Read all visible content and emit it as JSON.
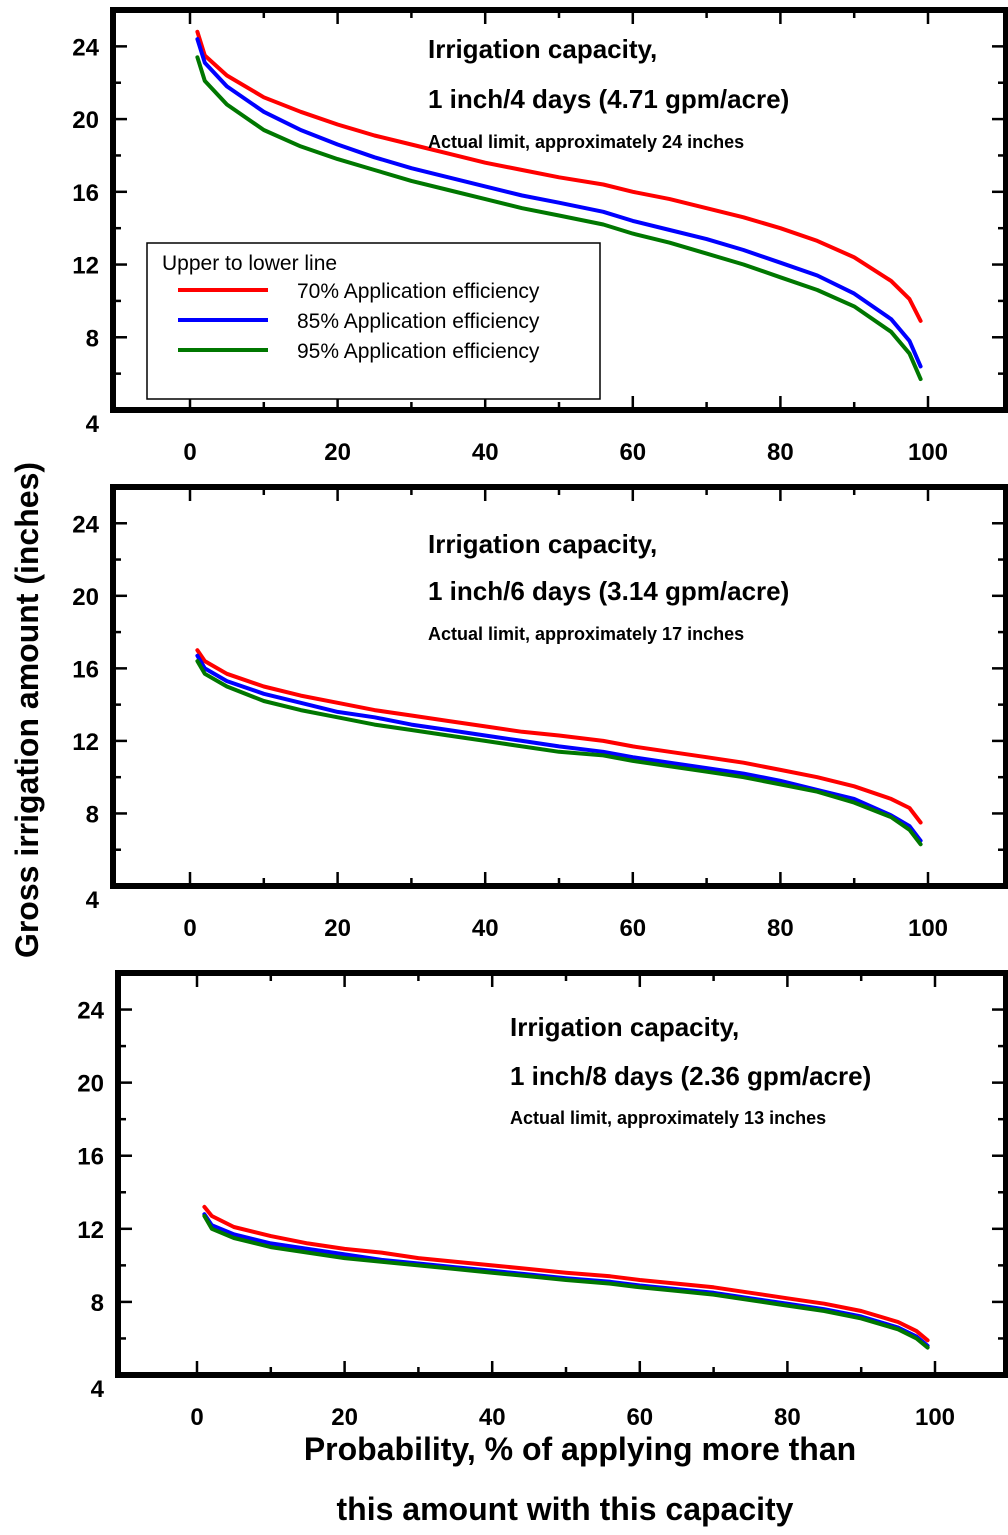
{
  "ylabel": "Gross irrigation amount (inches)",
  "xlabel_lines": [
    "Probability, % of applying more than",
    "this amount with this capacity"
  ],
  "legend": {
    "title": "Upper to lower line",
    "position": "left",
    "items": [
      "70% Application efficiency",
      "85% Application efficiency",
      "95% Application efficiency"
    ]
  },
  "colors": {
    "70% Application efficiency": "#ff0000",
    "85% Application efficiency": "#0000ff",
    "95% Application efficiency": "#007700",
    "axes": "#000000"
  },
  "chart_data": [
    {
      "type": "line",
      "annotation": [
        "Irrigation capacity,",
        "1 inch/4 days (4.71 gpm/acre)",
        "Actual limit, approximately 24 inches"
      ],
      "xlim": [
        0,
        100
      ],
      "ylim": [
        4,
        26
      ],
      "xticks": [
        0,
        20,
        40,
        60,
        80,
        100
      ],
      "yticks": [
        4,
        8,
        12,
        16,
        20,
        24
      ],
      "x": [
        1,
        2,
        5,
        10,
        15,
        20,
        25,
        30,
        35,
        40,
        45,
        50,
        56,
        60,
        65,
        70,
        75,
        80,
        85,
        90,
        95,
        97.5,
        99
      ],
      "series": [
        {
          "name": "70% Application efficiency",
          "values": [
            24.8,
            23.5,
            22.4,
            21.2,
            20.4,
            19.7,
            19.1,
            18.6,
            18.1,
            17.6,
            17.2,
            16.8,
            16.4,
            16.0,
            15.6,
            15.1,
            14.6,
            14.0,
            13.3,
            12.4,
            11.1,
            10.1,
            8.9
          ]
        },
        {
          "name": "85% Application efficiency",
          "values": [
            24.4,
            23.1,
            21.8,
            20.4,
            19.4,
            18.6,
            17.9,
            17.3,
            16.8,
            16.3,
            15.8,
            15.4,
            14.9,
            14.4,
            13.9,
            13.4,
            12.8,
            12.1,
            11.4,
            10.4,
            9.0,
            7.8,
            6.4
          ]
        },
        {
          "name": "95% Application efficiency",
          "values": [
            23.4,
            22.1,
            20.8,
            19.4,
            18.5,
            17.8,
            17.2,
            16.6,
            16.1,
            15.6,
            15.1,
            14.7,
            14.2,
            13.7,
            13.2,
            12.6,
            12.0,
            11.3,
            10.6,
            9.7,
            8.3,
            7.1,
            5.7
          ]
        }
      ]
    },
    {
      "type": "line",
      "annotation": [
        "Irrigation capacity,",
        "1 inch/6 days (3.14 gpm/acre)",
        "Actual limit, approximately 17 inches"
      ],
      "xlim": [
        0,
        100
      ],
      "ylim": [
        4,
        26
      ],
      "xticks": [
        0,
        20,
        40,
        60,
        80,
        100
      ],
      "yticks": [
        4,
        8,
        12,
        16,
        20,
        24
      ],
      "x": [
        1,
        2,
        5,
        10,
        15,
        20,
        25,
        30,
        35,
        40,
        45,
        50,
        56,
        60,
        65,
        70,
        75,
        80,
        85,
        90,
        95,
        97.5,
        99
      ],
      "series": [
        {
          "name": "70% Application efficiency",
          "values": [
            17.0,
            16.4,
            15.7,
            15.0,
            14.5,
            14.1,
            13.7,
            13.4,
            13.1,
            12.8,
            12.5,
            12.3,
            12.0,
            11.7,
            11.4,
            11.1,
            10.8,
            10.4,
            10.0,
            9.5,
            8.8,
            8.3,
            7.5
          ]
        },
        {
          "name": "85% Application efficiency",
          "values": [
            16.7,
            16.0,
            15.3,
            14.6,
            14.1,
            13.6,
            13.3,
            12.9,
            12.6,
            12.3,
            12.0,
            11.7,
            11.4,
            11.1,
            10.8,
            10.5,
            10.2,
            9.8,
            9.3,
            8.8,
            7.9,
            7.3,
            6.5
          ]
        },
        {
          "name": "95% Application efficiency",
          "values": [
            16.4,
            15.7,
            15.0,
            14.2,
            13.7,
            13.3,
            12.9,
            12.6,
            12.3,
            12.0,
            11.7,
            11.4,
            11.2,
            10.9,
            10.6,
            10.3,
            10.0,
            9.6,
            9.2,
            8.6,
            7.8,
            7.1,
            6.3
          ]
        }
      ]
    },
    {
      "type": "line",
      "annotation": [
        "Irrigation capacity,",
        "1 inch/8 days (2.36 gpm/acre)",
        "Actual limit, approximately 13 inches"
      ],
      "xlim": [
        0,
        100
      ],
      "ylim": [
        4,
        26
      ],
      "xticks": [
        0,
        20,
        40,
        60,
        80,
        100
      ],
      "yticks": [
        4,
        8,
        12,
        16,
        20,
        24
      ],
      "x": [
        1,
        2,
        5,
        10,
        15,
        20,
        25,
        30,
        35,
        40,
        45,
        50,
        56,
        60,
        65,
        70,
        75,
        80,
        85,
        90,
        95,
        97.5,
        99
      ],
      "series": [
        {
          "name": "70% Application efficiency",
          "values": [
            13.2,
            12.7,
            12.1,
            11.6,
            11.2,
            10.9,
            10.7,
            10.4,
            10.2,
            10.0,
            9.8,
            9.6,
            9.4,
            9.2,
            9.0,
            8.8,
            8.5,
            8.2,
            7.9,
            7.5,
            6.9,
            6.4,
            5.9
          ]
        },
        {
          "name": "85% Application efficiency",
          "values": [
            12.8,
            12.2,
            11.7,
            11.2,
            10.9,
            10.6,
            10.3,
            10.1,
            9.9,
            9.7,
            9.5,
            9.3,
            9.1,
            8.9,
            8.7,
            8.5,
            8.2,
            7.9,
            7.6,
            7.2,
            6.6,
            6.1,
            5.6
          ]
        },
        {
          "name": "95% Application efficiency",
          "values": [
            12.7,
            12.0,
            11.5,
            11.0,
            10.7,
            10.4,
            10.2,
            10.0,
            9.8,
            9.6,
            9.4,
            9.2,
            9.0,
            8.8,
            8.6,
            8.4,
            8.1,
            7.8,
            7.5,
            7.1,
            6.5,
            6.0,
            5.5
          ]
        }
      ]
    }
  ]
}
